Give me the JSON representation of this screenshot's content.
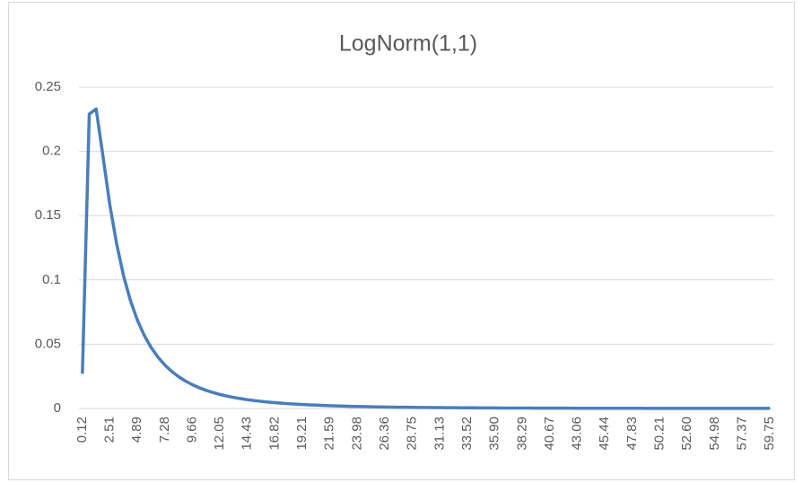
{
  "chart_data": {
    "type": "line",
    "title": "LogNorm(1,1)",
    "categories": [
      "0.12",
      null,
      null,
      null,
      "2.51",
      null,
      null,
      null,
      "4.89",
      null,
      null,
      null,
      "7.28",
      null,
      null,
      null,
      "9.66",
      null,
      null,
      null,
      "12.05",
      null,
      null,
      null,
      "14.43",
      null,
      null,
      null,
      "16.82",
      null,
      null,
      null,
      "19.21",
      null,
      null,
      null,
      "21.59",
      null,
      null,
      null,
      "23.98",
      null,
      null,
      null,
      "26.36",
      null,
      null,
      null,
      "28.75",
      null,
      null,
      null,
      "31.13",
      null,
      null,
      null,
      "33.52",
      null,
      null,
      null,
      "35.90",
      null,
      null,
      null,
      "38.29",
      null,
      null,
      null,
      "40.67",
      null,
      null,
      null,
      "43.06",
      null,
      null,
      null,
      "45.44",
      null,
      null,
      null,
      "47.83",
      null,
      null,
      null,
      "50.21",
      null,
      null,
      null,
      "52.60",
      null,
      null,
      null,
      "54.98",
      null,
      null,
      null,
      "57.37",
      null,
      null,
      null,
      "59.75"
    ],
    "series": [
      {
        "name": "LogNorm(1,1)",
        "color": "#4a7ebb",
        "values": [
          0.027,
          0.229,
          0.233,
          0.196,
          0.158,
          0.1275,
          0.1029,
          0.0837,
          0.0687,
          0.0568,
          0.0474,
          0.0399,
          0.0338,
          0.0288,
          0.0247,
          0.0213,
          0.0185,
          0.0161,
          0.0141,
          0.0124,
          0.0109,
          0.00969,
          0.00861,
          0.00768,
          0.00686,
          0.00615,
          0.00554,
          0.00499,
          0.00451,
          0.00408,
          0.00371,
          0.00339,
          0.0031,
          0.00283,
          0.00259,
          0.00236,
          0.00216,
          0.00199,
          0.00184,
          0.00169,
          0.00156,
          0.00145,
          0.00134,
          0.00125,
          0.00116,
          0.00107,
          0.000997,
          0.000925,
          0.000859,
          0.000806,
          0.000756,
          0.000709,
          0.000665,
          0.000624,
          0.000585,
          0.000549,
          0.000515,
          0.000483,
          0.000453,
          0.000425,
          0.000398,
          0.000377,
          0.000358,
          0.000339,
          0.000322,
          0.000305,
          0.000289,
          0.000274,
          0.00026,
          0.000246,
          0.000234,
          0.000221,
          0.00021,
          0.000199,
          0.000189,
          0.000179,
          0.00017,
          0.000161,
          0.000152,
          0.000144,
          0.000137,
          0.000131,
          0.000125,
          0.00012,
          0.000115,
          0.00011,
          0.000105,
          0.0001,
          9.58e-05,
          9.17e-05,
          8.77e-05,
          8.39e-05,
          8.03e-05,
          7.68e-05,
          7.34e-05,
          7.02e-05,
          6.72e-05,
          6.43e-05,
          6.15e-05,
          5.89e-05,
          5.64e-05
        ]
      }
    ],
    "ylim": [
      0,
      0.25
    ],
    "yticks": [
      0,
      0.05,
      0.1,
      0.15,
      0.2,
      0.25
    ],
    "grid": true
  }
}
